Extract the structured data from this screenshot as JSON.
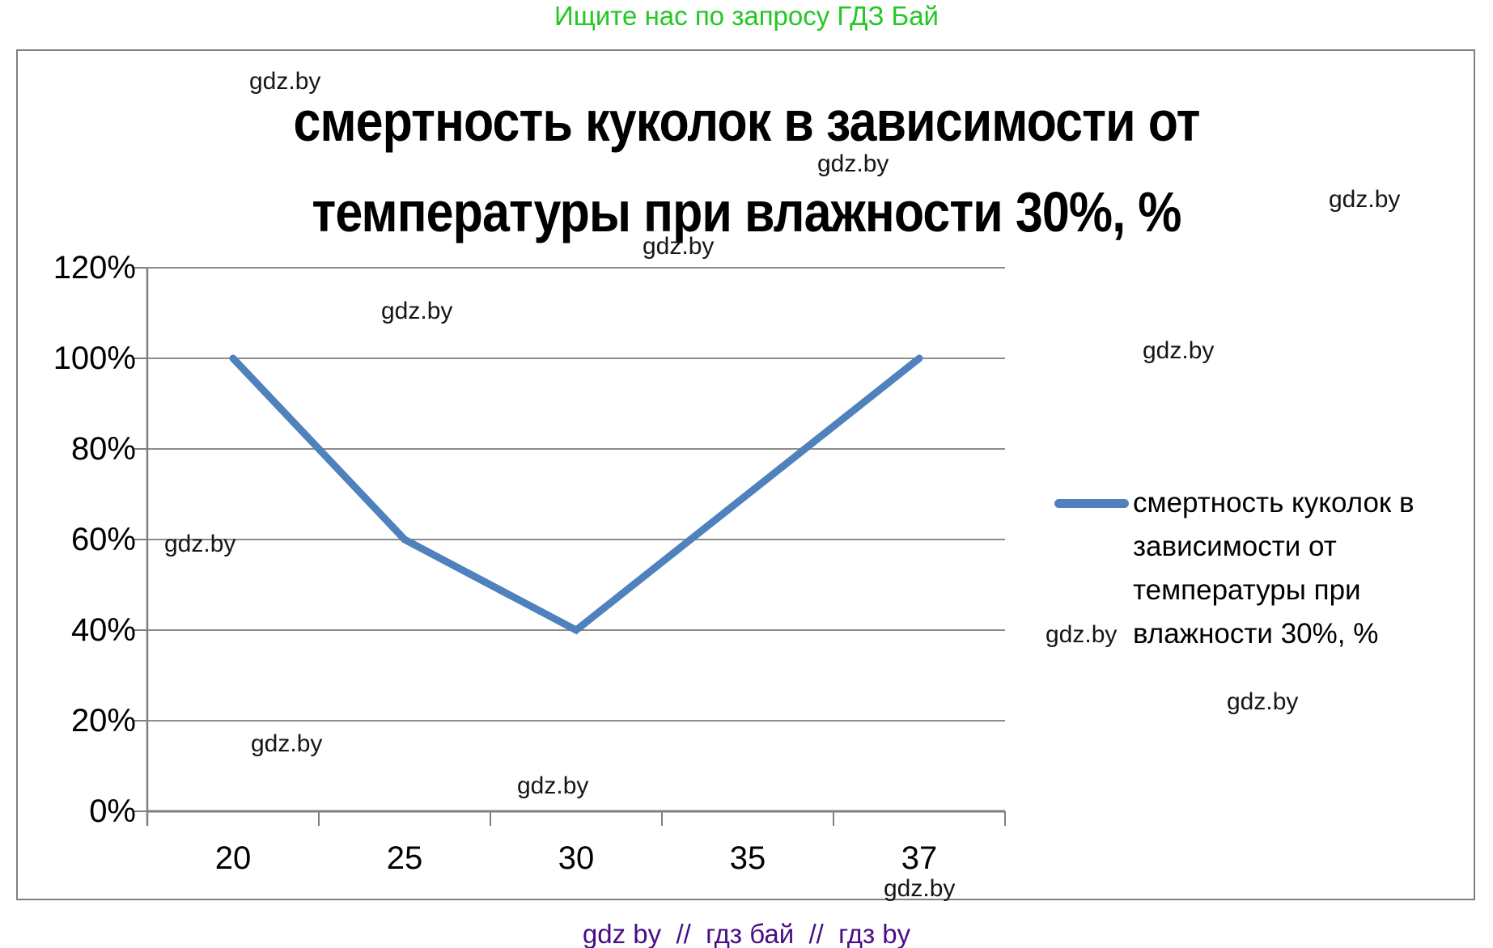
{
  "page": {
    "header_text": "Ищите нас по запросу ГДЗ Бай",
    "header_color": "#24C724",
    "footer_text": "gdz by  //  гдз бай  //  гдз by",
    "footer_color": "#4A0D86",
    "watermark_text": "gdz.by"
  },
  "chart": {
    "title_line1": "смертность куколок в зависимости от",
    "title_line2": "температуры при влажности 30%, %",
    "legend_lines": [
      "смертность куколок в",
      "зависимости от",
      "температуры при",
      "влажности 30%, %"
    ]
  },
  "chart_data": {
    "type": "line",
    "title": "смертность куколок в зависимости от температуры при влажности 30%, %",
    "categories": [
      20,
      25,
      30,
      35,
      37
    ],
    "series": [
      {
        "name": "смертность куколок в зависимости от температуры при влажности 30%, %",
        "color": "#4F81BD",
        "line_width": 9,
        "points": [
          {
            "x": 20,
            "y": 100
          },
          {
            "x": 25,
            "y": 60
          },
          {
            "x": 30,
            "y": 40
          },
          {
            "x": 37,
            "y": 100
          }
        ]
      }
    ],
    "ylim": [
      0,
      120
    ],
    "y_ticks": [
      0,
      20,
      40,
      60,
      80,
      100,
      120
    ],
    "y_tick_suffix": "%",
    "grid": true,
    "legend_position": "right",
    "gridline_color": "#8C8C8C",
    "axis_color": "#7F7F7F"
  }
}
